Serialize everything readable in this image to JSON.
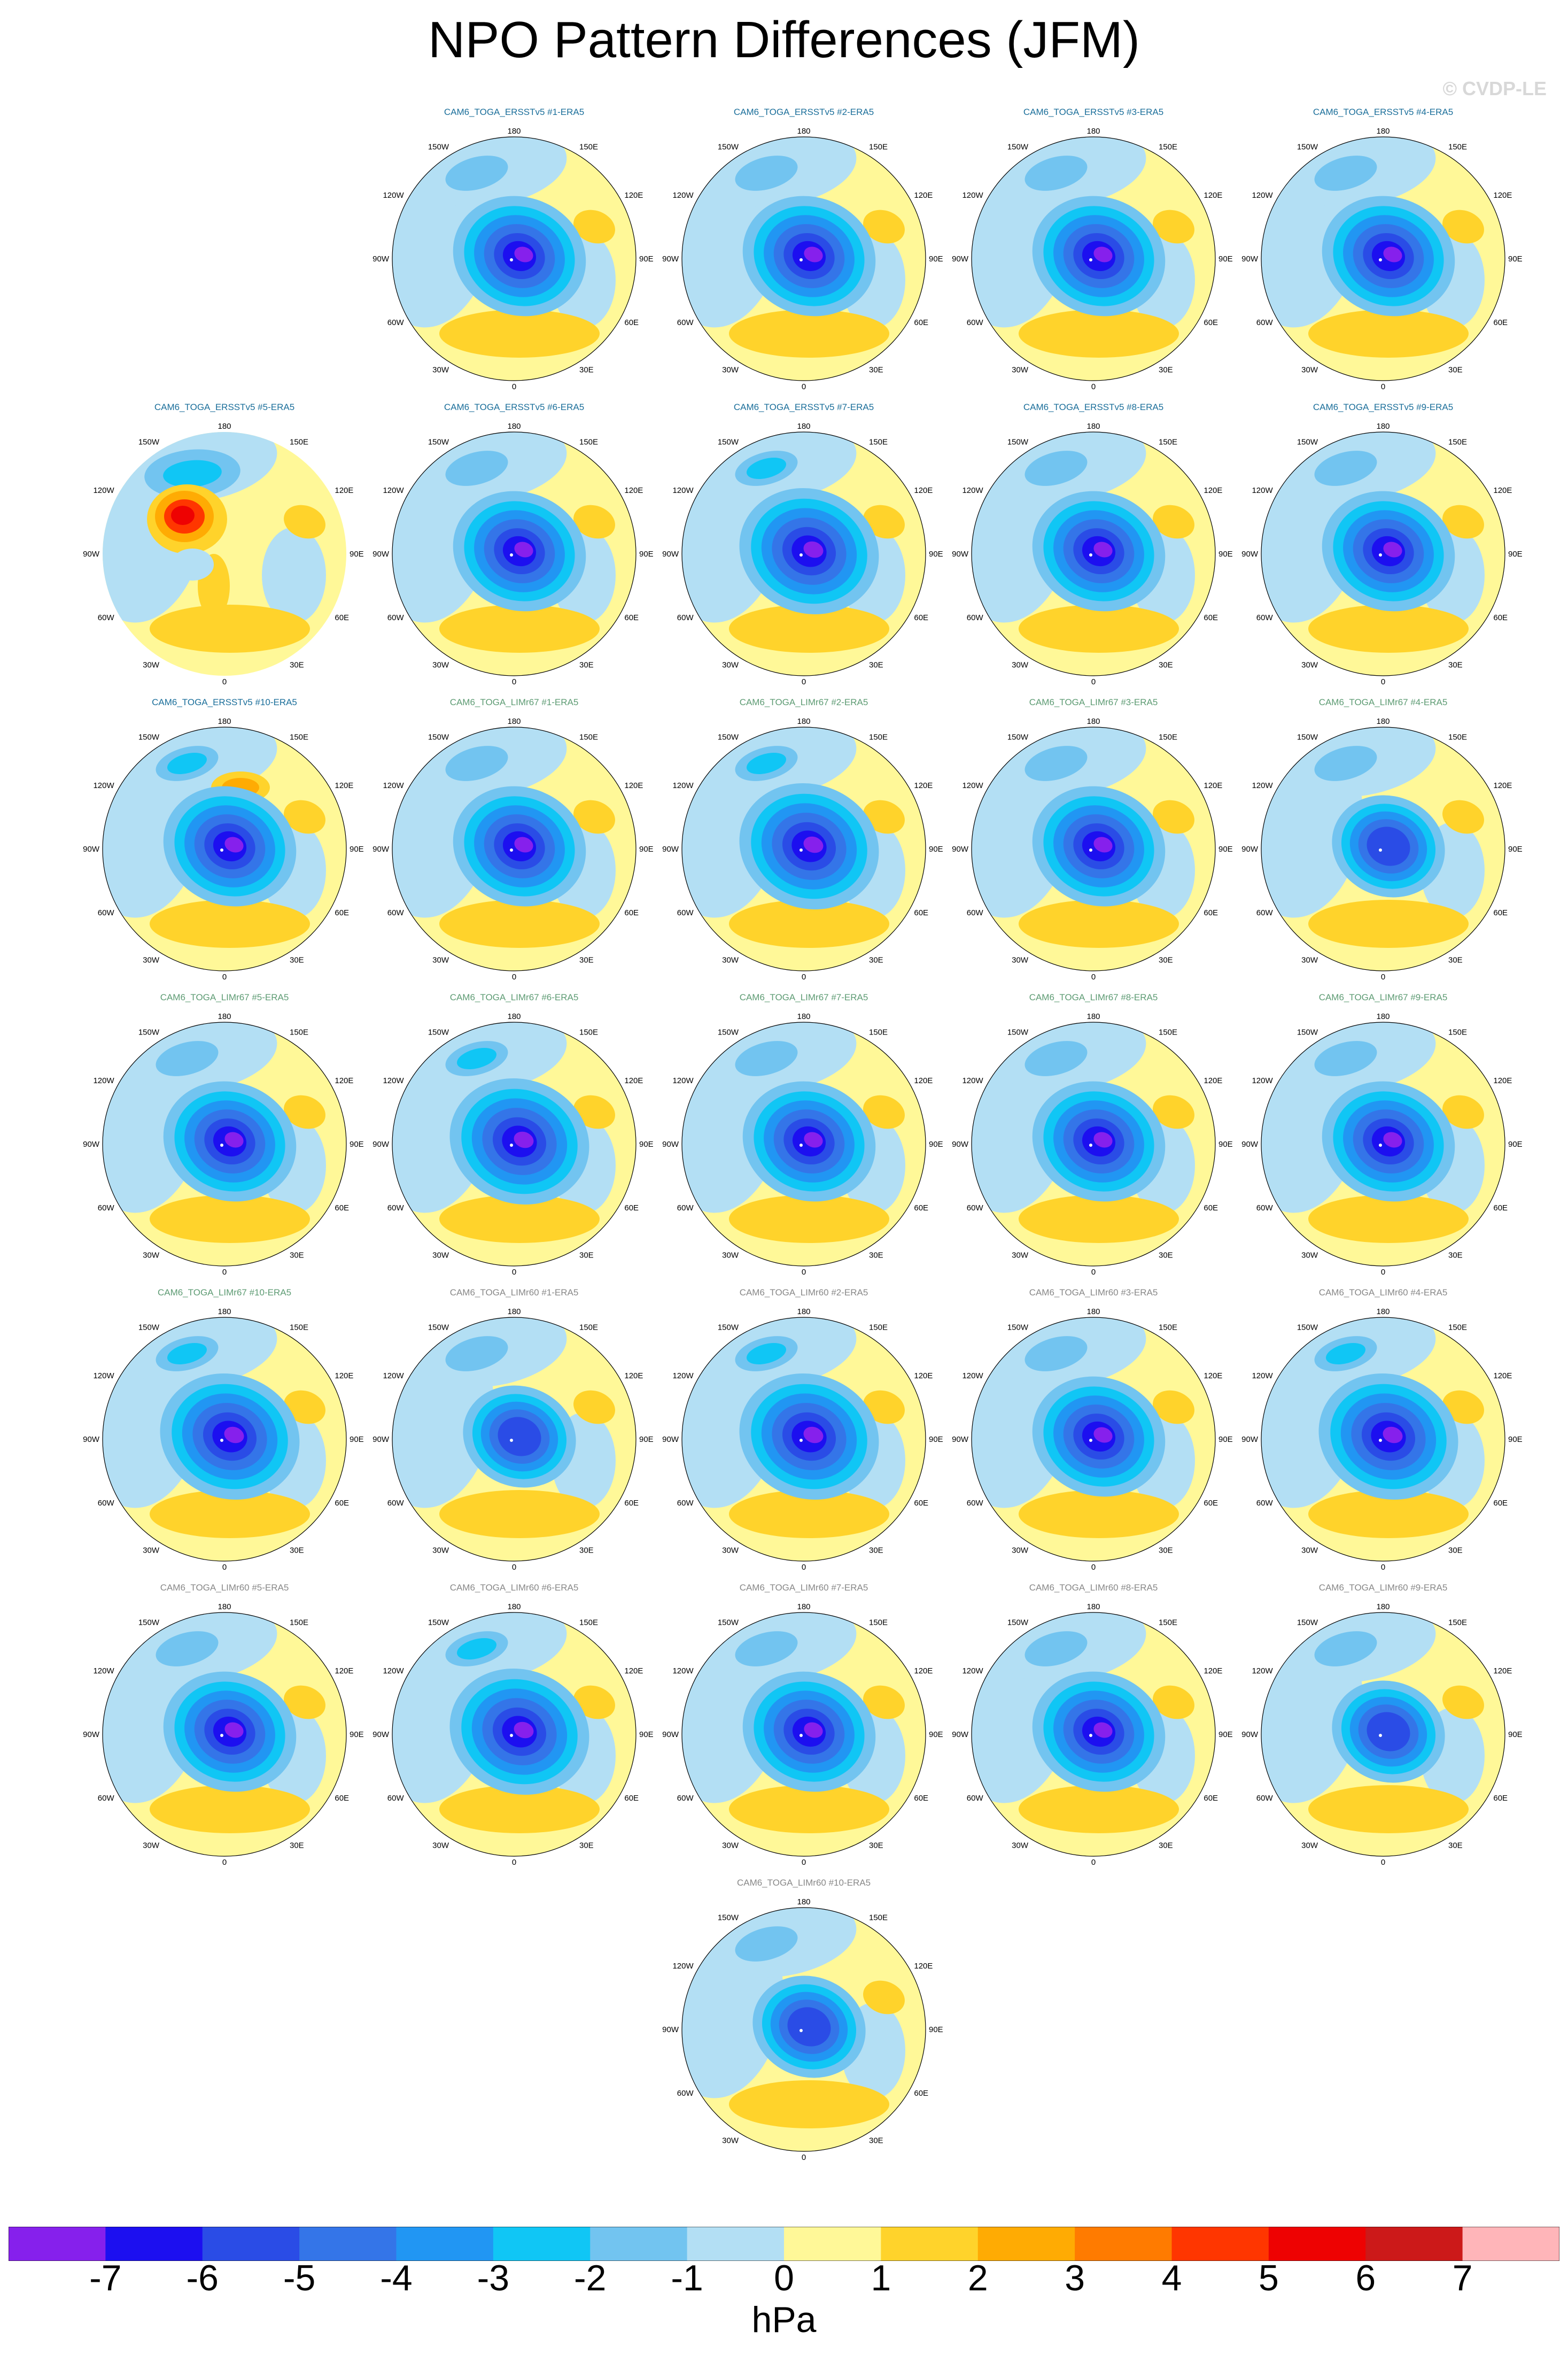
{
  "title": "NPO Pattern Differences (JFM)",
  "credit": "© CVDP-LE",
  "colorbar": {
    "colors": [
      "#8620ec",
      "#1c0ff0",
      "#2a4ce6",
      "#3475e8",
      "#2196f3",
      "#10c6f5",
      "#72c4f0",
      "#b3dff4",
      "#fff898",
      "#ffd32b",
      "#ffab03",
      "#ff7b00",
      "#ff3600",
      "#ee0202",
      "#cc1919",
      "#ffb5b9"
    ],
    "ticks": [
      "-7",
      "-6",
      "-5",
      "-4",
      "-3",
      "-2",
      "-1",
      "0",
      "1",
      "2",
      "3",
      "4",
      "5",
      "6",
      "7"
    ],
    "units": "hPa"
  },
  "map_labels": {
    "top": "180",
    "bottom": "0",
    "left": "90W",
    "right": "90E",
    "upper_left_1": "150W",
    "upper_left_2": "120W",
    "upper_right_1": "150E",
    "upper_right_2": "120E",
    "lower_left_1": "60W",
    "lower_left_2": "30W",
    "lower_right_1": "60E",
    "lower_right_2": "30E"
  },
  "groups": {
    "ERSSTv5": "#1a6e9a",
    "LIMr67": "#5d9b73",
    "LIMr60": "#888888"
  },
  "panels": [
    {
      "title": "CAM6_TOGA_ERSSTv5 #1-ERA5",
      "group": "ERSSTv5",
      "variant": "standard"
    },
    {
      "title": "CAM6_TOGA_ERSSTv5 #2-ERA5",
      "group": "ERSSTv5",
      "variant": "standard"
    },
    {
      "title": "CAM6_TOGA_ERSSTv5 #3-ERA5",
      "group": "ERSSTv5",
      "variant": "standard"
    },
    {
      "title": "CAM6_TOGA_ERSSTv5 #4-ERA5",
      "group": "ERSSTv5",
      "variant": "standard"
    },
    {
      "title": "CAM6_TOGA_ERSSTv5 #5-ERA5",
      "group": "ERSSTv5",
      "variant": "red"
    },
    {
      "title": "CAM6_TOGA_ERSSTv5 #6-ERA5",
      "group": "ERSSTv5",
      "variant": "standard"
    },
    {
      "title": "CAM6_TOGA_ERSSTv5 #7-ERA5",
      "group": "ERSSTv5",
      "variant": "strong"
    },
    {
      "title": "CAM6_TOGA_ERSSTv5 #8-ERA5",
      "group": "ERSSTv5",
      "variant": "standard"
    },
    {
      "title": "CAM6_TOGA_ERSSTv5 #9-ERA5",
      "group": "ERSSTv5",
      "variant": "standard"
    },
    {
      "title": "CAM6_TOGA_ERSSTv5 #10-ERA5",
      "group": "ERSSTv5",
      "variant": "dipole"
    },
    {
      "title": "CAM6_TOGA_LIMr67 #1-ERA5",
      "group": "LIMr67",
      "variant": "standard"
    },
    {
      "title": "CAM6_TOGA_LIMr67 #2-ERA5",
      "group": "LIMr67",
      "variant": "strong"
    },
    {
      "title": "CAM6_TOGA_LIMr67 #3-ERA5",
      "group": "LIMr67",
      "variant": "standard"
    },
    {
      "title": "CAM6_TOGA_LIMr67 #4-ERA5",
      "group": "LIMr67",
      "variant": "weak"
    },
    {
      "title": "CAM6_TOGA_LIMr67 #5-ERA5",
      "group": "LIMr67",
      "variant": "standard"
    },
    {
      "title": "CAM6_TOGA_LIMr67 #6-ERA5",
      "group": "LIMr67",
      "variant": "strong"
    },
    {
      "title": "CAM6_TOGA_LIMr67 #7-ERA5",
      "group": "LIMr67",
      "variant": "standard"
    },
    {
      "title": "CAM6_TOGA_LIMr67 #8-ERA5",
      "group": "LIMr67",
      "variant": "standard"
    },
    {
      "title": "CAM6_TOGA_LIMr67 #9-ERA5",
      "group": "LIMr67",
      "variant": "standard"
    },
    {
      "title": "CAM6_TOGA_LIMr67 #10-ERA5",
      "group": "LIMr67",
      "variant": "strong"
    },
    {
      "title": "CAM6_TOGA_LIMr60 #1-ERA5",
      "group": "LIMr60",
      "variant": "weak"
    },
    {
      "title": "CAM6_TOGA_LIMr60 #2-ERA5",
      "group": "LIMr60",
      "variant": "strong"
    },
    {
      "title": "CAM6_TOGA_LIMr60 #3-ERA5",
      "group": "LIMr60",
      "variant": "standard"
    },
    {
      "title": "CAM6_TOGA_LIMr60 #4-ERA5",
      "group": "LIMr60",
      "variant": "strong"
    },
    {
      "title": "CAM6_TOGA_LIMr60 #5-ERA5",
      "group": "LIMr60",
      "variant": "standard"
    },
    {
      "title": "CAM6_TOGA_LIMr60 #6-ERA5",
      "group": "LIMr60",
      "variant": "strong"
    },
    {
      "title": "CAM6_TOGA_LIMr60 #7-ERA5",
      "group": "LIMr60",
      "variant": "standard"
    },
    {
      "title": "CAM6_TOGA_LIMr60 #8-ERA5",
      "group": "LIMr60",
      "variant": "standard"
    },
    {
      "title": "CAM6_TOGA_LIMr60 #9-ERA5",
      "group": "LIMr60",
      "variant": "weak"
    },
    {
      "title": "CAM6_TOGA_LIMr60 #10-ERA5",
      "group": "LIMr60",
      "variant": "weak"
    }
  ]
}
